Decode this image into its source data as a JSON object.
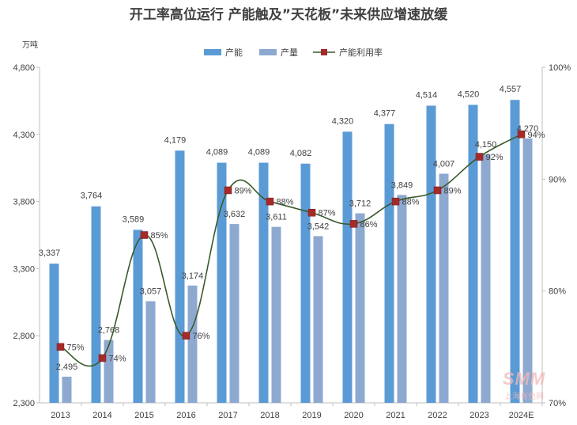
{
  "chart_data": {
    "type": "bar",
    "title": "开工率高位运行 产能触及”天花板”未来供应增速放缓",
    "y_unit": "万吨",
    "categories": [
      "2013",
      "2014",
      "2015",
      "2016",
      "2017",
      "2018",
      "2019",
      "2020",
      "2021",
      "2022",
      "2023",
      "2024E"
    ],
    "series": [
      {
        "name": "产能",
        "type": "bar",
        "axis": "left",
        "color": "#5B9BD5",
        "values": [
          3337,
          3764,
          3589,
          4179,
          4089,
          4089,
          4082,
          4320,
          4377,
          4514,
          4520,
          4557
        ]
      },
      {
        "name": "产量",
        "type": "bar",
        "axis": "left",
        "color": "#8EA9D0",
        "values": [
          2495,
          2768,
          3057,
          3174,
          3632,
          3611,
          3542,
          3712,
          3849,
          4007,
          4150,
          4270
        ]
      },
      {
        "name": "产能利用率",
        "type": "line",
        "axis": "right",
        "color": "#3A5A2A",
        "marker_color": "#A52A2A",
        "values": [
          75,
          74,
          85,
          76,
          89,
          88,
          87,
          86,
          88,
          89,
          92,
          94
        ]
      }
    ],
    "y_left": {
      "min": 2300,
      "max": 4800,
      "ticks": [
        2300,
        2800,
        3300,
        3800,
        4300,
        4800
      ]
    },
    "y_right": {
      "min": 70,
      "max": 100,
      "ticks": [
        70,
        80,
        90,
        100
      ]
    },
    "legend_position": "top-center",
    "grid": false
  },
  "watermark": {
    "logo": "SMM",
    "text": "上海有色网"
  }
}
